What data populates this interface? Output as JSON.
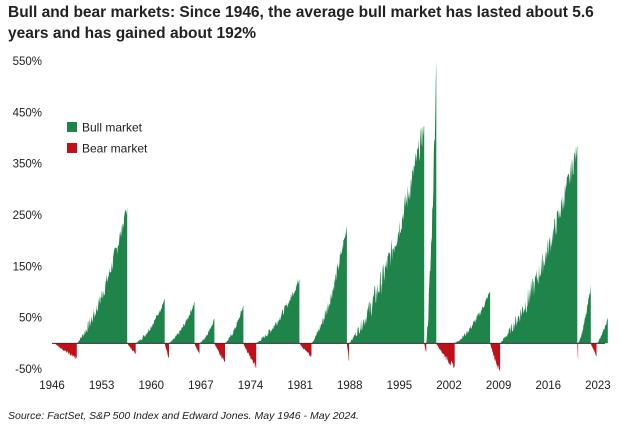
{
  "chart_data": {
    "type": "area",
    "title": "Bull and bear markets: Since 1946, the average bull market has lasted about 5.6 years and has gained about 192%",
    "source": "Source: FactSet, S&P 500 Index and Edward Jones. May 1946 - May 2024.",
    "xlabel": "",
    "ylabel": "",
    "x_range": [
      1946,
      2024
    ],
    "ylim": [
      -50,
      550
    ],
    "y_ticks": [
      550,
      450,
      350,
      250,
      150,
      50,
      -50
    ],
    "y_tick_labels": [
      "550%",
      "450%",
      "350%",
      "250%",
      "150%",
      "50%",
      "-50%"
    ],
    "x_ticks": [
      1946,
      1953,
      1960,
      1967,
      1974,
      1981,
      1988,
      1995,
      2002,
      2009,
      2016,
      2023
    ],
    "x_tick_labels": [
      "1946",
      "1953",
      "1960",
      "1967",
      "1974",
      "1981",
      "1988",
      "1995",
      "2002",
      "2009",
      "2016",
      "2023"
    ],
    "grid": false,
    "legend": [
      {
        "name": "Bull market",
        "color": "#1e8449"
      },
      {
        "name": "Bear market",
        "color": "#c0111a"
      }
    ],
    "legend_placement": "top-left",
    "series": [
      {
        "name": "Bear market",
        "color": "#c0111a",
        "periods": [
          {
            "start": 1946.4,
            "end": 1949.5,
            "trough": -30
          },
          {
            "start": 1956.6,
            "end": 1957.8,
            "trough": -20
          },
          {
            "start": 1961.9,
            "end": 1962.5,
            "trough": -28
          },
          {
            "start": 1966.1,
            "end": 1966.8,
            "trough": -22
          },
          {
            "start": 1968.9,
            "end": 1970.4,
            "trough": -36
          },
          {
            "start": 1973.0,
            "end": 1974.8,
            "trough": -48
          },
          {
            "start": 1980.9,
            "end": 1982.6,
            "trough": -27
          },
          {
            "start": 1987.6,
            "end": 1987.9,
            "trough": -34
          },
          {
            "start": 1998.5,
            "end": 1998.8,
            "trough": -19
          },
          {
            "start": 2000.2,
            "end": 2002.8,
            "trough": -49
          },
          {
            "start": 2007.8,
            "end": 2009.2,
            "trough": -57
          },
          {
            "start": 2020.1,
            "end": 2020.2,
            "trough": -34
          },
          {
            "start": 2022.0,
            "end": 2022.8,
            "trough": -25
          }
        ]
      },
      {
        "name": "Bull market",
        "color": "#1e8449",
        "periods": [
          {
            "start": 1949.5,
            "end": 1956.6,
            "peak": 267
          },
          {
            "start": 1957.8,
            "end": 1961.9,
            "peak": 86
          },
          {
            "start": 1962.5,
            "end": 1966.1,
            "peak": 80
          },
          {
            "start": 1966.8,
            "end": 1968.9,
            "peak": 48
          },
          {
            "start": 1970.4,
            "end": 1973.0,
            "peak": 74
          },
          {
            "start": 1974.8,
            "end": 1980.9,
            "peak": 126
          },
          {
            "start": 1982.6,
            "end": 1987.6,
            "peak": 229
          },
          {
            "start": 1987.9,
            "end": 1998.5,
            "peak": 423
          },
          {
            "start": 1998.8,
            "end": 2000.2,
            "peak": 550
          },
          {
            "start": 2002.8,
            "end": 2007.8,
            "peak": 101
          },
          {
            "start": 2009.2,
            "end": 2020.1,
            "peak": 383
          },
          {
            "start": 2020.2,
            "end": 2022.0,
            "peak": 114
          },
          {
            "start": 2022.8,
            "end": 2024.4,
            "peak": 50
          }
        ]
      }
    ]
  }
}
